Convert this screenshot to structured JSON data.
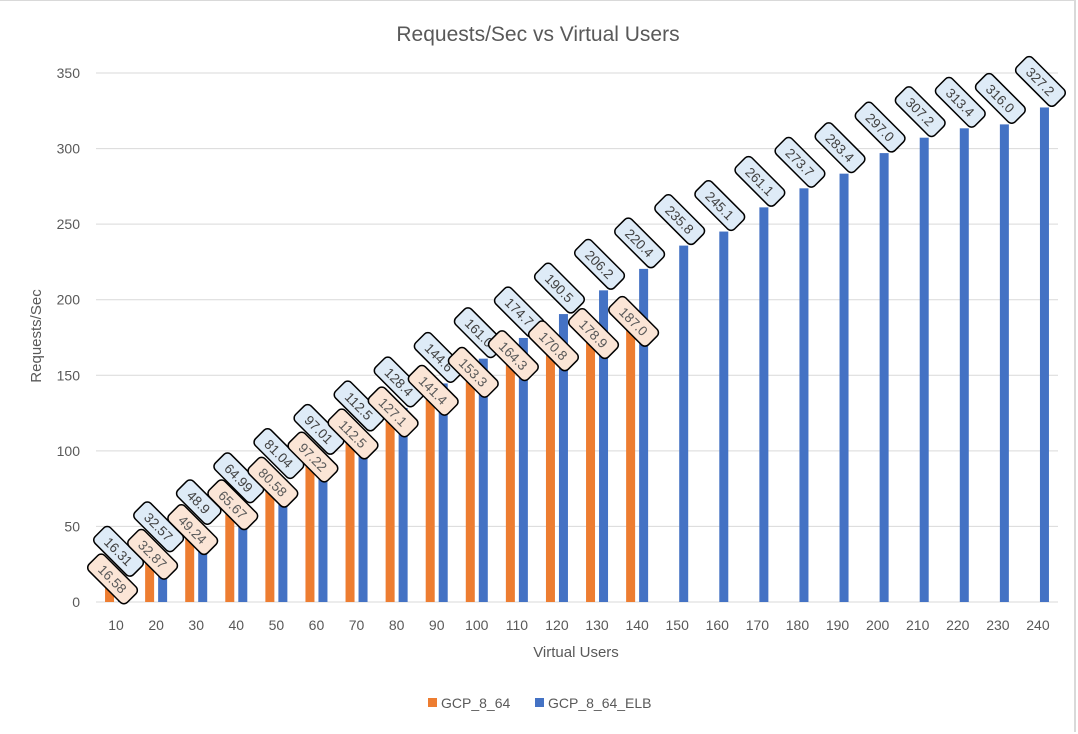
{
  "chart_data": {
    "type": "bar",
    "title": "Requests/Sec vs Virtual Users",
    "xlabel": "Virtual Users",
    "ylabel": "Requests/Sec",
    "ylim": [
      0,
      350
    ],
    "yticks": [
      0,
      50,
      100,
      150,
      200,
      250,
      300,
      350
    ],
    "grid": true,
    "legend_position": "bottom",
    "categories": [
      "10",
      "20",
      "30",
      "40",
      "50",
      "60",
      "70",
      "80",
      "90",
      "100",
      "110",
      "120",
      "130",
      "140",
      "150",
      "160",
      "170",
      "180",
      "190",
      "200",
      "210",
      "220",
      "230",
      "240"
    ],
    "series": [
      {
        "name": "GCP_8_64",
        "color": "#ED7D31",
        "label_fill": "#FBE5D6",
        "values": [
          16.58,
          32.87,
          49.24,
          65.67,
          80.58,
          97.22,
          112.5,
          127.1,
          141.4,
          153.3,
          164.3,
          170.8,
          178.9,
          187.0,
          null,
          null,
          null,
          null,
          null,
          null,
          null,
          null,
          null,
          null
        ],
        "labels": [
          "16.58",
          "32.87",
          "49.24",
          "65.67",
          "80.58",
          "97.22",
          "112.5",
          "127.1",
          "141.4",
          "153.3",
          "164.3",
          "170.8",
          "178.9",
          "187.0"
        ]
      },
      {
        "name": "GCP_8_64_ELB",
        "color": "#4472C4",
        "label_fill": "#DEEBF7",
        "values": [
          16.31,
          32.57,
          48.9,
          64.99,
          81.04,
          97.01,
          112.5,
          128.4,
          144.6,
          161.0,
          174.7,
          190.5,
          206.2,
          220.4,
          235.8,
          245.1,
          261.1,
          273.7,
          283.4,
          297.0,
          307.2,
          313.4,
          316.0,
          327.2
        ],
        "labels": [
          "16.31",
          "32.57",
          "48.9",
          "64.99",
          "81.04",
          "97.01",
          "112.5",
          "128.4",
          "144.6",
          "161.0",
          "174.7",
          "190.5",
          "206.2",
          "220.4",
          "235.8",
          "245.1",
          "261.1",
          "273.7",
          "283.4",
          "297.0",
          "307.2",
          "313.4",
          "316.0",
          "327.2"
        ]
      }
    ]
  }
}
